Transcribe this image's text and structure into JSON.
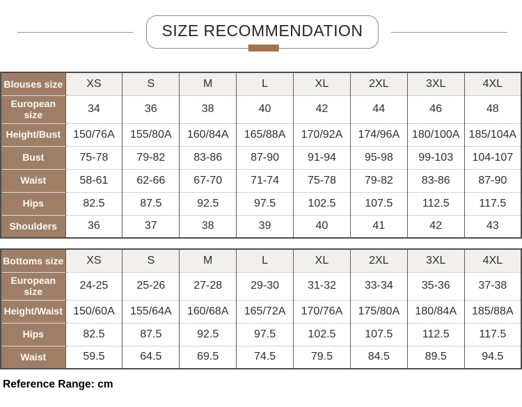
{
  "header": {
    "title": "SIZE RECOMMENDATION"
  },
  "colors": {
    "row_header_bg": "#9e7e66",
    "accent_tab": "#a1734f",
    "size_row_bg": "#f1f0ee",
    "outer_border": "#4d4d4d",
    "column_border": "#5f5f5f",
    "dotted_separator": "#a8a8a8",
    "text_dark": "#2e2e2e",
    "row_header_text": "#fdfaf6"
  },
  "blouses_table": {
    "rows": [
      {
        "label": "Blouses size",
        "values": [
          "XS",
          "S",
          "M",
          "L",
          "XL",
          "2XL",
          "3XL",
          "4XL"
        ]
      },
      {
        "label": "European size",
        "values": [
          "34",
          "36",
          "38",
          "40",
          "42",
          "44",
          "46",
          "48"
        ]
      },
      {
        "label": "Height/Bust",
        "values": [
          "150/76A",
          "155/80A",
          "160/84A",
          "165/88A",
          "170/92A",
          "174/96A",
          "180/100A",
          "185/104A"
        ]
      },
      {
        "label": "Bust",
        "values": [
          "75-78",
          "79-82",
          "83-86",
          "87-90",
          "91-94",
          "95-98",
          "99-103",
          "104-107"
        ]
      },
      {
        "label": "Waist",
        "values": [
          "58-61",
          "62-66",
          "67-70",
          "71-74",
          "75-78",
          "79-82",
          "83-86",
          "87-90"
        ]
      },
      {
        "label": "Hips",
        "values": [
          "82.5",
          "87.5",
          "92.5",
          "97.5",
          "102.5",
          "107.5",
          "112.5",
          "117.5"
        ]
      },
      {
        "label": "Shoulders",
        "values": [
          "36",
          "37",
          "38",
          "39",
          "40",
          "41",
          "42",
          "43"
        ]
      }
    ]
  },
  "bottoms_table": {
    "rows": [
      {
        "label": "Bottoms size",
        "values": [
          "XS",
          "S",
          "M",
          "L",
          "XL",
          "2XL",
          "3XL",
          "4XL"
        ]
      },
      {
        "label": "European size",
        "values": [
          "24-25",
          "25-26",
          "27-28",
          "29-30",
          "31-32",
          "33-34",
          "35-36",
          "37-38"
        ]
      },
      {
        "label": "Height/Waist",
        "values": [
          "150/60A",
          "155/64A",
          "160/68A",
          "165/72A",
          "170/76A",
          "175/80A",
          "180/84A",
          "185/88A"
        ]
      },
      {
        "label": "Hips",
        "values": [
          "82.5",
          "87.5",
          "92.5",
          "97.5",
          "102.5",
          "107.5",
          "112.5",
          "117.5"
        ]
      },
      {
        "label": "Waist",
        "values": [
          "59.5",
          "64.5",
          "69.5",
          "74.5",
          "79.5",
          "84.5",
          "89.5",
          "94.5"
        ]
      }
    ]
  },
  "footer": {
    "text": "Reference Range: cm"
  }
}
